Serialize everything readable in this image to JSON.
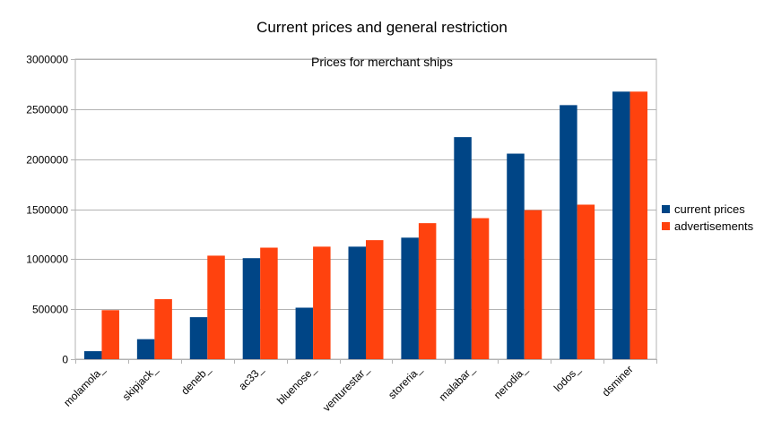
{
  "chart_data": {
    "type": "bar",
    "title": "Current prices and general restriction",
    "subtitle": "Prices for merchant ships",
    "categories": [
      "molamola_",
      "skipjack_",
      "deneb_",
      "ac33_",
      "bluenose_",
      "venturestar_",
      "storeria_",
      "malabar_",
      "nerodia_",
      "lodos_",
      "dsminer"
    ],
    "series": [
      {
        "name": "current prices",
        "color": "#004586",
        "values": [
          80000,
          200000,
          420000,
          1010000,
          515000,
          1125000,
          1215000,
          2220000,
          2055000,
          2540000,
          2675000
        ]
      },
      {
        "name": "advertisements",
        "color": "#ff420e",
        "values": [
          490000,
          600000,
          1035000,
          1115000,
          1125000,
          1190000,
          1360000,
          1410000,
          1490000,
          1545000,
          2675000
        ]
      }
    ],
    "ylim": [
      0,
      3000000
    ],
    "yticks": [
      0,
      500000,
      1000000,
      1500000,
      2000000,
      2500000,
      3000000
    ],
    "ytick_labels": [
      "0",
      "500000",
      "1000000",
      "1500000",
      "2000000",
      "2500000",
      "3000000"
    ],
    "grid": true,
    "legend_position": "right"
  }
}
